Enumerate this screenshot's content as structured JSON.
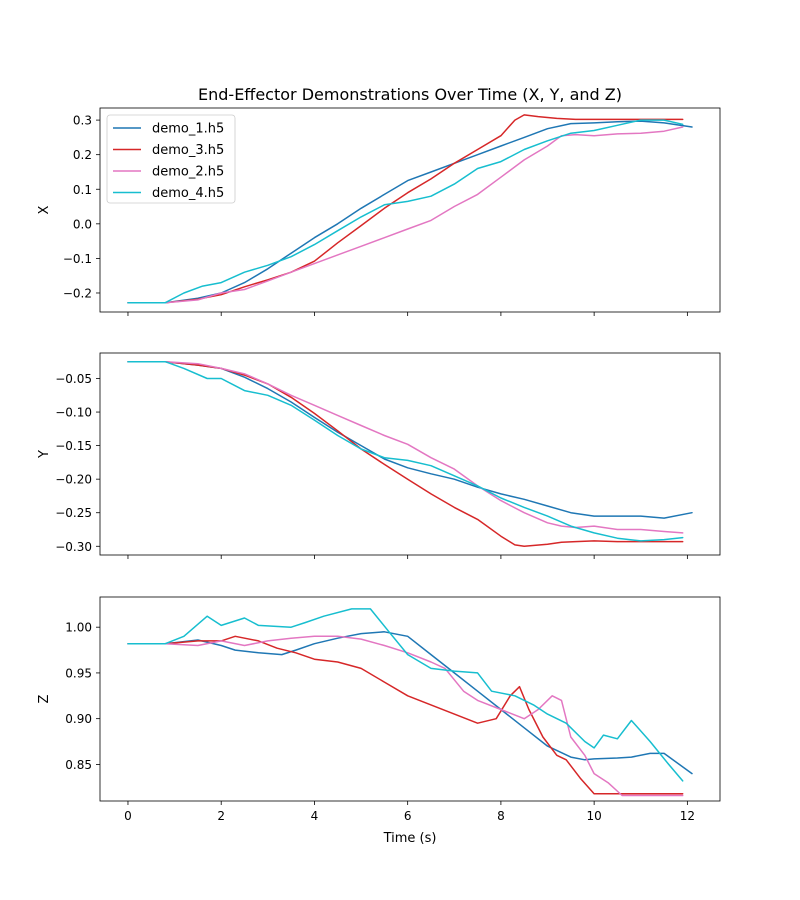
{
  "chart_data": [
    {
      "type": "line",
      "title": "End-Effector Demonstrations Over Time (X, Y, and Z)",
      "xlabel": "",
      "ylabel": "X",
      "xlim": [
        -0.6,
        12.7
      ],
      "ylim": [
        -0.255,
        0.335
      ],
      "xticks": [
        0,
        2,
        4,
        6,
        8,
        10,
        12
      ],
      "show_xticklabels": false,
      "yticks": [
        -0.2,
        -0.1,
        0.0,
        0.1,
        0.2,
        0.3
      ],
      "ytick_labels": [
        "−0.2",
        "−0.1",
        "0.0",
        "0.1",
        "0.2",
        "0.3"
      ],
      "grid": false,
      "legend": "upper-left",
      "series": [
        {
          "name": "demo_1.h5",
          "color": "#1f77b4",
          "x": [
            0,
            0.8,
            1.5,
            2.0,
            2.5,
            3.0,
            3.5,
            4.0,
            4.5,
            5.0,
            5.5,
            6.0,
            6.5,
            7.0,
            7.5,
            8.0,
            8.5,
            9.0,
            9.5,
            10.0,
            10.5,
            11.0,
            11.5,
            12.1
          ],
          "y": [
            -0.228,
            -0.228,
            -0.215,
            -0.2,
            -0.17,
            -0.13,
            -0.085,
            -0.04,
            0.0,
            0.045,
            0.085,
            0.125,
            0.15,
            0.175,
            0.2,
            0.225,
            0.25,
            0.275,
            0.29,
            0.292,
            0.295,
            0.297,
            0.292,
            0.28
          ]
        },
        {
          "name": "demo_3.h5",
          "color": "#d62728",
          "x": [
            0,
            0.8,
            1.5,
            2.0,
            2.5,
            3.0,
            3.5,
            4.0,
            4.5,
            5.0,
            5.5,
            6.0,
            6.5,
            7.0,
            7.5,
            8.0,
            8.3,
            8.5,
            8.8,
            9.2,
            9.6,
            10.0,
            10.5,
            11.0,
            11.5,
            11.9
          ],
          "y": [
            -0.228,
            -0.228,
            -0.218,
            -0.205,
            -0.182,
            -0.162,
            -0.14,
            -0.108,
            -0.055,
            -0.005,
            0.045,
            0.09,
            0.13,
            0.175,
            0.215,
            0.255,
            0.3,
            0.315,
            0.31,
            0.305,
            0.302,
            0.302,
            0.302,
            0.302,
            0.302,
            0.302
          ]
        },
        {
          "name": "demo_2.h5",
          "color": "#e377c2",
          "x": [
            0,
            0.8,
            1.5,
            2.0,
            2.5,
            3.0,
            3.5,
            4.0,
            4.5,
            5.0,
            5.5,
            6.0,
            6.5,
            7.0,
            7.5,
            8.0,
            8.5,
            9.0,
            9.3,
            9.6,
            10.0,
            10.5,
            11.0,
            11.5,
            11.9
          ],
          "y": [
            -0.228,
            -0.228,
            -0.22,
            -0.2,
            -0.19,
            -0.165,
            -0.14,
            -0.115,
            -0.09,
            -0.065,
            -0.04,
            -0.015,
            0.01,
            0.05,
            0.085,
            0.135,
            0.185,
            0.225,
            0.255,
            0.258,
            0.255,
            0.26,
            0.262,
            0.268,
            0.28
          ]
        },
        {
          "name": "demo_4.h5",
          "color": "#17becf",
          "x": [
            0,
            0.8,
            1.2,
            1.6,
            2.0,
            2.5,
            3.0,
            3.5,
            4.0,
            4.5,
            5.0,
            5.5,
            6.0,
            6.5,
            7.0,
            7.5,
            8.0,
            8.5,
            9.0,
            9.5,
            10.0,
            10.5,
            11.0,
            11.5,
            11.9
          ],
          "y": [
            -0.228,
            -0.228,
            -0.2,
            -0.18,
            -0.17,
            -0.14,
            -0.12,
            -0.095,
            -0.06,
            -0.02,
            0.02,
            0.055,
            0.065,
            0.08,
            0.115,
            0.16,
            0.18,
            0.215,
            0.24,
            0.262,
            0.27,
            0.285,
            0.3,
            0.3,
            0.288
          ]
        }
      ]
    },
    {
      "type": "line",
      "title": "",
      "xlabel": "",
      "ylabel": "Y",
      "xlim": [
        -0.6,
        12.7
      ],
      "ylim": [
        -0.313,
        -0.012
      ],
      "xticks": [
        0,
        2,
        4,
        6,
        8,
        10,
        12
      ],
      "show_xticklabels": false,
      "yticks": [
        -0.05,
        -0.1,
        -0.15,
        -0.2,
        -0.25,
        -0.3
      ],
      "ytick_labels": [
        "−0.05",
        "−0.10",
        "−0.15",
        "−0.20",
        "−0.25",
        "−0.30"
      ],
      "grid": false,
      "series": [
        {
          "name": "demo_1.h5",
          "color": "#1f77b4",
          "x": [
            0,
            0.8,
            1.5,
            2.0,
            2.5,
            3.0,
            3.5,
            4.0,
            4.5,
            5.0,
            5.5,
            6.0,
            6.5,
            7.0,
            7.5,
            8.0,
            8.5,
            9.0,
            9.5,
            10.0,
            10.5,
            11.0,
            11.5,
            12.1
          ],
          "y": [
            -0.025,
            -0.025,
            -0.03,
            -0.035,
            -0.048,
            -0.065,
            -0.085,
            -0.108,
            -0.13,
            -0.15,
            -0.17,
            -0.183,
            -0.192,
            -0.2,
            -0.212,
            -0.222,
            -0.23,
            -0.24,
            -0.25,
            -0.255,
            -0.255,
            -0.255,
            -0.258,
            -0.25
          ]
        },
        {
          "name": "demo_3.h5",
          "color": "#d62728",
          "x": [
            0,
            0.8,
            1.5,
            2.0,
            2.5,
            3.0,
            3.5,
            4.0,
            4.5,
            5.0,
            5.5,
            6.0,
            6.5,
            7.0,
            7.5,
            8.0,
            8.3,
            8.5,
            9.0,
            9.3,
            9.6,
            10.0,
            10.5,
            11.0,
            11.5,
            11.9
          ],
          "y": [
            -0.025,
            -0.025,
            -0.03,
            -0.035,
            -0.045,
            -0.058,
            -0.078,
            -0.102,
            -0.128,
            -0.155,
            -0.178,
            -0.2,
            -0.222,
            -0.242,
            -0.26,
            -0.285,
            -0.298,
            -0.3,
            -0.297,
            -0.294,
            -0.293,
            -0.292,
            -0.293,
            -0.293,
            -0.293,
            -0.293
          ]
        },
        {
          "name": "demo_2.h5",
          "color": "#e377c2",
          "x": [
            0,
            0.8,
            1.5,
            2.0,
            2.5,
            3.0,
            3.5,
            4.0,
            4.5,
            5.0,
            5.5,
            6.0,
            6.5,
            7.0,
            7.5,
            8.0,
            8.5,
            9.0,
            9.3,
            9.6,
            10.0,
            10.5,
            11.0,
            11.5,
            11.9
          ],
          "y": [
            -0.025,
            -0.025,
            -0.028,
            -0.035,
            -0.043,
            -0.058,
            -0.075,
            -0.09,
            -0.105,
            -0.12,
            -0.135,
            -0.148,
            -0.168,
            -0.185,
            -0.21,
            -0.232,
            -0.25,
            -0.265,
            -0.27,
            -0.272,
            -0.27,
            -0.275,
            -0.275,
            -0.278,
            -0.28
          ]
        },
        {
          "name": "demo_4.h5",
          "color": "#17becf",
          "x": [
            0,
            0.8,
            1.2,
            1.7,
            2.0,
            2.5,
            3.0,
            3.5,
            4.0,
            4.5,
            5.0,
            5.5,
            6.0,
            6.5,
            7.0,
            7.5,
            8.0,
            8.5,
            9.0,
            9.5,
            10.0,
            10.5,
            11.0,
            11.5,
            11.9
          ],
          "y": [
            -0.025,
            -0.025,
            -0.035,
            -0.05,
            -0.05,
            -0.068,
            -0.075,
            -0.09,
            -0.112,
            -0.135,
            -0.155,
            -0.168,
            -0.172,
            -0.18,
            -0.195,
            -0.21,
            -0.228,
            -0.242,
            -0.255,
            -0.27,
            -0.28,
            -0.288,
            -0.292,
            -0.29,
            -0.287
          ]
        }
      ]
    },
    {
      "type": "line",
      "title": "",
      "xlabel": "Time (s)",
      "ylabel": "Z",
      "xlim": [
        -0.6,
        12.7
      ],
      "ylim": [
        0.81,
        1.033
      ],
      "xticks": [
        0,
        2,
        4,
        6,
        8,
        10,
        12
      ],
      "show_xticklabels": true,
      "yticks": [
        0.85,
        0.9,
        0.95,
        1.0
      ],
      "ytick_labels": [
        "0.85",
        "0.90",
        "0.95",
        "1.00"
      ],
      "grid": false,
      "series": [
        {
          "name": "demo_1.h5",
          "color": "#1f77b4",
          "x": [
            0,
            0.8,
            1.5,
            2.0,
            2.3,
            2.8,
            3.3,
            3.6,
            4.0,
            4.5,
            5.0,
            5.5,
            6.0,
            6.5,
            7.0,
            7.5,
            8.0,
            8.5,
            9.0,
            9.5,
            9.8,
            10.0,
            10.5,
            10.8,
            11.2,
            11.5,
            12.1
          ],
          "y": [
            0.982,
            0.982,
            0.986,
            0.98,
            0.975,
            0.972,
            0.97,
            0.975,
            0.982,
            0.988,
            0.993,
            0.995,
            0.99,
            0.97,
            0.95,
            0.93,
            0.91,
            0.89,
            0.87,
            0.858,
            0.855,
            0.856,
            0.857,
            0.858,
            0.862,
            0.862,
            0.84
          ]
        },
        {
          "name": "demo_3.h5",
          "color": "#d62728",
          "x": [
            0,
            0.8,
            1.5,
            2.0,
            2.3,
            2.8,
            3.2,
            3.6,
            4.0,
            4.5,
            5.0,
            5.5,
            6.0,
            6.5,
            7.0,
            7.5,
            7.9,
            8.2,
            8.4,
            8.6,
            8.9,
            9.2,
            9.4,
            9.7,
            10.0,
            10.5,
            11.0,
            11.5,
            11.9
          ],
          "y": [
            0.982,
            0.982,
            0.985,
            0.985,
            0.99,
            0.985,
            0.977,
            0.972,
            0.965,
            0.962,
            0.955,
            0.94,
            0.925,
            0.915,
            0.905,
            0.895,
            0.9,
            0.925,
            0.935,
            0.91,
            0.88,
            0.86,
            0.855,
            0.835,
            0.818,
            0.818,
            0.818,
            0.818,
            0.818
          ]
        },
        {
          "name": "demo_2.h5",
          "color": "#e377c2",
          "x": [
            0,
            0.8,
            1.5,
            2.0,
            2.5,
            3.0,
            3.5,
            4.0,
            4.5,
            5.0,
            5.5,
            6.0,
            6.5,
            6.8,
            7.2,
            7.5,
            8.0,
            8.5,
            8.8,
            9.1,
            9.3,
            9.5,
            9.8,
            10.0,
            10.3,
            10.6,
            11.0,
            11.5,
            11.9
          ],
          "y": [
            0.982,
            0.982,
            0.98,
            0.985,
            0.98,
            0.985,
            0.988,
            0.99,
            0.99,
            0.987,
            0.98,
            0.972,
            0.962,
            0.955,
            0.93,
            0.92,
            0.91,
            0.9,
            0.91,
            0.925,
            0.92,
            0.88,
            0.86,
            0.84,
            0.83,
            0.816,
            0.816,
            0.816,
            0.816
          ]
        },
        {
          "name": "demo_4.h5",
          "color": "#17becf",
          "x": [
            0,
            0.8,
            1.2,
            1.7,
            2.0,
            2.5,
            2.8,
            3.5,
            3.8,
            4.2,
            4.8,
            5.2,
            5.6,
            6.0,
            6.5,
            7.0,
            7.5,
            7.8,
            8.3,
            8.7,
            9.0,
            9.4,
            9.8,
            10.0,
            10.2,
            10.5,
            10.8,
            11.2,
            11.6,
            11.9
          ],
          "y": [
            0.982,
            0.982,
            0.99,
            1.012,
            1.002,
            1.01,
            1.002,
            1.0,
            1.005,
            1.012,
            1.02,
            1.02,
            0.995,
            0.97,
            0.955,
            0.952,
            0.95,
            0.93,
            0.925,
            0.915,
            0.905,
            0.895,
            0.875,
            0.868,
            0.882,
            0.878,
            0.898,
            0.875,
            0.85,
            0.832
          ]
        }
      ]
    }
  ]
}
